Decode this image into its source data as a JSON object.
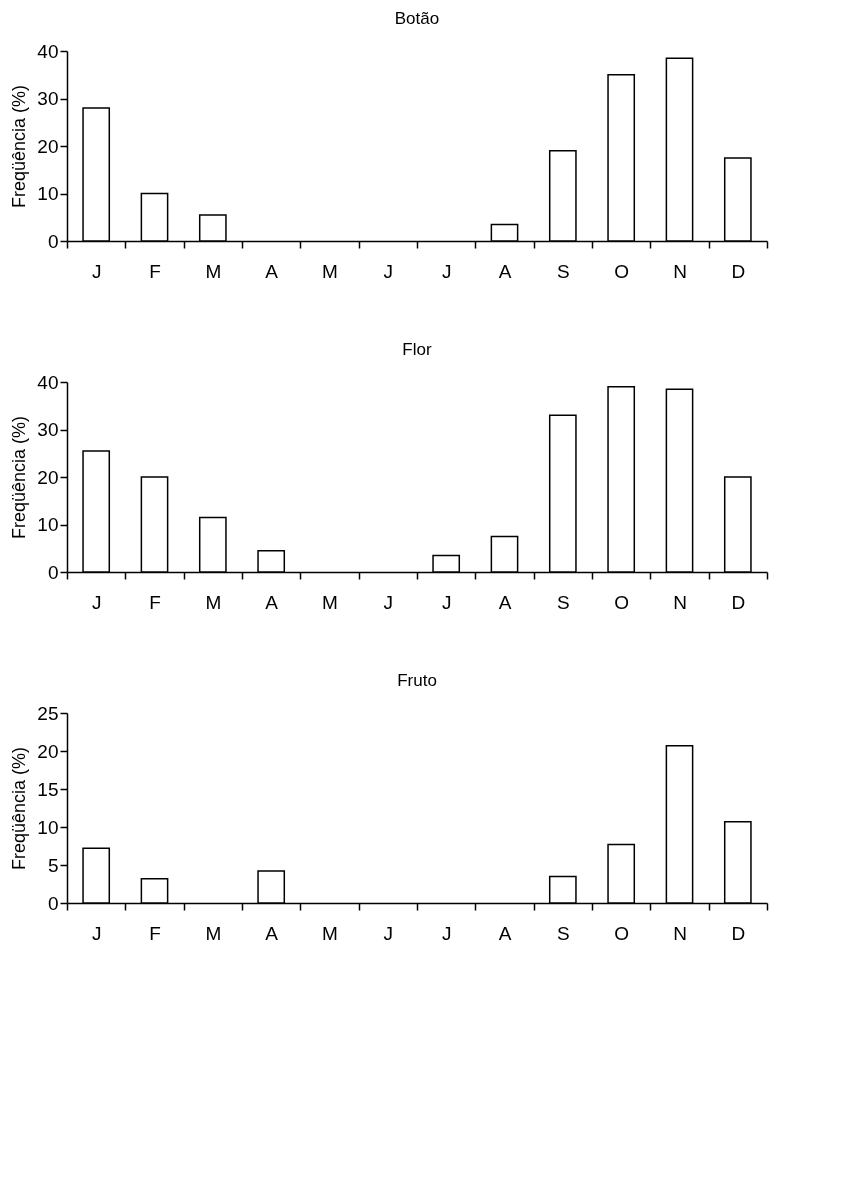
{
  "chart_data": [
    {
      "type": "bar",
      "title": "Botão",
      "ylabel": "Freqüência (%)",
      "categories": [
        "J",
        "F",
        "M",
        "A",
        "M",
        "J",
        "J",
        "A",
        "S",
        "O",
        "N",
        "D"
      ],
      "values": [
        28,
        10,
        5.5,
        0,
        0,
        0,
        0,
        3.5,
        19,
        35,
        38.5,
        17.5
      ],
      "color": "#ffffff",
      "ylim": [
        0,
        40
      ],
      "yticks": [
        0,
        10,
        20,
        30,
        40
      ],
      "grid": false
    },
    {
      "type": "bar",
      "title": "Flor",
      "ylabel": "Freqüência (%)",
      "categories": [
        "J",
        "F",
        "M",
        "A",
        "M",
        "J",
        "J",
        "A",
        "S",
        "O",
        "N",
        "D"
      ],
      "values": [
        25.5,
        20,
        11.5,
        4.5,
        0,
        0,
        3.5,
        7.5,
        33,
        39,
        38.5,
        20
      ],
      "color": "#ffffff",
      "ylim": [
        0,
        40
      ],
      "yticks": [
        0,
        10,
        20,
        30,
        40
      ],
      "grid": false
    },
    {
      "type": "bar",
      "title": "Fruto",
      "ylabel": "Freqüência (%)",
      "categories": [
        "J",
        "F",
        "M",
        "A",
        "M",
        "J",
        "J",
        "A",
        "S",
        "O",
        "N",
        "D"
      ],
      "values": [
        7.2,
        3.2,
        0,
        4.2,
        0,
        0,
        0,
        0,
        3.5,
        7.7,
        20.7,
        10.7
      ],
      "color": "#ffffff",
      "ylim": [
        0,
        25
      ],
      "yticks": [
        0,
        5,
        10,
        15,
        20,
        25
      ],
      "grid": false
    }
  ]
}
